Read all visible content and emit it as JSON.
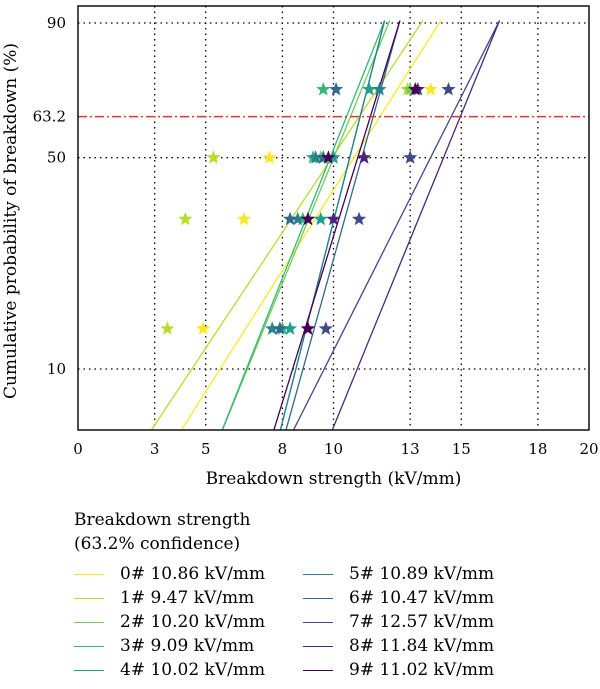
{
  "chart_data": {
    "type": "scatter",
    "xlabel": "Breakdown strength (kV/mm)",
    "ylabel": "Cumulative probability of breakdown (%)",
    "xlim": [
      0,
      20
    ],
    "x_ticks": [
      0,
      3,
      5,
      8,
      10,
      13,
      15,
      18,
      20
    ],
    "y_ticks": [
      10,
      50,
      63.2,
      90
    ],
    "y_scale": "weibull",
    "grid": "dotted",
    "reference_line": {
      "y": 63.2,
      "color": "#e8332a",
      "style": "dash-dot"
    },
    "legend_title": "Breakdown strength\n(63.2% confidence)",
    "legend_placement": "below",
    "series": [
      {
        "name": "0# 10.86 kV/mm",
        "color": "#fde725",
        "x": [
          4.9,
          6.5,
          7.5,
          13.8
        ],
        "fit": {
          "x": [
            3.5,
            14.2
          ],
          "y": [
            4.9,
            90.5
          ]
        }
      },
      {
        "name": "1# 9.47 kV/mm",
        "color": "#b5de2b",
        "x": [
          3.5,
          4.2,
          5.3,
          12.9
        ],
        "fit": {
          "x": [
            2.3,
            13.5
          ],
          "y": [
            4.9,
            90.5
          ]
        }
      },
      {
        "name": "2# 10.20 kV/mm",
        "color": "#6ece58",
        "x": [
          8.0,
          9.0,
          9.5,
          13.0
        ],
        "fit": {
          "x": [
            5.3,
            12.2
          ],
          "y": [
            4.9,
            90.5
          ]
        }
      },
      {
        "name": "3# 9.09 kV/mm",
        "color": "#35b779",
        "x": [
          8.0,
          8.8,
          9.2,
          9.6
        ],
        "fit": {
          "x": [
            5.3,
            12.0
          ],
          "y": [
            4.9,
            90.5
          ]
        }
      },
      {
        "name": "4# 10.02 kV/mm",
        "color": "#1f9e89",
        "x": [
          8.3,
          9.5,
          10.0,
          11.4
        ],
        "fit": {
          "x": [
            7.7,
            12.0
          ],
          "y": [
            4.9,
            90.5
          ]
        }
      },
      {
        "name": "5# 10.89 kV/mm",
        "color": "#26828e",
        "x": [
          7.6,
          8.6,
          9.3,
          11.8
        ],
        "fit": {
          "x": [
            7.7,
            12.0
          ],
          "y": [
            4.9,
            90.5
          ]
        }
      },
      {
        "name": "6# 10.47 kV/mm",
        "color": "#31688e",
        "x": [
          7.9,
          8.3,
          9.6,
          10.1
        ],
        "fit": {
          "x": [
            7.9,
            12.6
          ],
          "y": [
            4.9,
            90.5
          ]
        }
      },
      {
        "name": "7# 12.57 kV/mm",
        "color": "#3e4989",
        "x": [
          9.7,
          11.0,
          13.0,
          14.5
        ],
        "fit": {
          "x": [
            8.0,
            16.5
          ],
          "y": [
            4.9,
            90.5
          ]
        }
      },
      {
        "name": "8# 11.84 kV/mm",
        "color": "#482878",
        "x": [
          9.0,
          10.0,
          11.2,
          13.3
        ],
        "fit": {
          "x": [
            9.6,
            16.5
          ],
          "y": [
            4.9,
            90.5
          ]
        }
      },
      {
        "name": "9# 11.02 kV/mm",
        "color": "#440154",
        "x": [
          9.0,
          9.0,
          9.8,
          13.2
        ],
        "fit": {
          "x": [
            7.4,
            12.6
          ],
          "y": [
            4.9,
            90.5
          ]
        }
      }
    ],
    "points_y": [
      14,
      33,
      50,
      72
    ]
  }
}
